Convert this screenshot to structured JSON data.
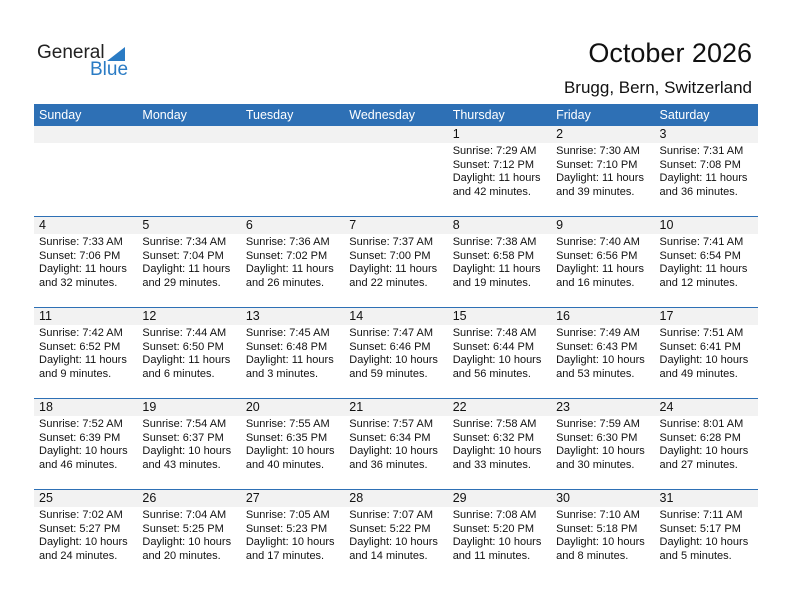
{
  "logo": {
    "general": "General",
    "blue": "Blue"
  },
  "title": "October 2026",
  "location": "Brugg, Bern, Switzerland",
  "colors": {
    "header_bg": "#2e70b5",
    "brand_blue": "#2a7bc4",
    "day_band": "#f2f2f2"
  },
  "weekdays": [
    "Sunday",
    "Monday",
    "Tuesday",
    "Wednesday",
    "Thursday",
    "Friday",
    "Saturday"
  ],
  "weeks": [
    [
      null,
      null,
      null,
      null,
      {
        "day": "1",
        "sunrise": "Sunrise: 7:29 AM",
        "sunset": "Sunset: 7:12 PM",
        "daylight1": "Daylight: 11 hours",
        "daylight2": "and 42 minutes."
      },
      {
        "day": "2",
        "sunrise": "Sunrise: 7:30 AM",
        "sunset": "Sunset: 7:10 PM",
        "daylight1": "Daylight: 11 hours",
        "daylight2": "and 39 minutes."
      },
      {
        "day": "3",
        "sunrise": "Sunrise: 7:31 AM",
        "sunset": "Sunset: 7:08 PM",
        "daylight1": "Daylight: 11 hours",
        "daylight2": "and 36 minutes."
      }
    ],
    [
      {
        "day": "4",
        "sunrise": "Sunrise: 7:33 AM",
        "sunset": "Sunset: 7:06 PM",
        "daylight1": "Daylight: 11 hours",
        "daylight2": "and 32 minutes."
      },
      {
        "day": "5",
        "sunrise": "Sunrise: 7:34 AM",
        "sunset": "Sunset: 7:04 PM",
        "daylight1": "Daylight: 11 hours",
        "daylight2": "and 29 minutes."
      },
      {
        "day": "6",
        "sunrise": "Sunrise: 7:36 AM",
        "sunset": "Sunset: 7:02 PM",
        "daylight1": "Daylight: 11 hours",
        "daylight2": "and 26 minutes."
      },
      {
        "day": "7",
        "sunrise": "Sunrise: 7:37 AM",
        "sunset": "Sunset: 7:00 PM",
        "daylight1": "Daylight: 11 hours",
        "daylight2": "and 22 minutes."
      },
      {
        "day": "8",
        "sunrise": "Sunrise: 7:38 AM",
        "sunset": "Sunset: 6:58 PM",
        "daylight1": "Daylight: 11 hours",
        "daylight2": "and 19 minutes."
      },
      {
        "day": "9",
        "sunrise": "Sunrise: 7:40 AM",
        "sunset": "Sunset: 6:56 PM",
        "daylight1": "Daylight: 11 hours",
        "daylight2": "and 16 minutes."
      },
      {
        "day": "10",
        "sunrise": "Sunrise: 7:41 AM",
        "sunset": "Sunset: 6:54 PM",
        "daylight1": "Daylight: 11 hours",
        "daylight2": "and 12 minutes."
      }
    ],
    [
      {
        "day": "11",
        "sunrise": "Sunrise: 7:42 AM",
        "sunset": "Sunset: 6:52 PM",
        "daylight1": "Daylight: 11 hours",
        "daylight2": "and 9 minutes."
      },
      {
        "day": "12",
        "sunrise": "Sunrise: 7:44 AM",
        "sunset": "Sunset: 6:50 PM",
        "daylight1": "Daylight: 11 hours",
        "daylight2": "and 6 minutes."
      },
      {
        "day": "13",
        "sunrise": "Sunrise: 7:45 AM",
        "sunset": "Sunset: 6:48 PM",
        "daylight1": "Daylight: 11 hours",
        "daylight2": "and 3 minutes."
      },
      {
        "day": "14",
        "sunrise": "Sunrise: 7:47 AM",
        "sunset": "Sunset: 6:46 PM",
        "daylight1": "Daylight: 10 hours",
        "daylight2": "and 59 minutes."
      },
      {
        "day": "15",
        "sunrise": "Sunrise: 7:48 AM",
        "sunset": "Sunset: 6:44 PM",
        "daylight1": "Daylight: 10 hours",
        "daylight2": "and 56 minutes."
      },
      {
        "day": "16",
        "sunrise": "Sunrise: 7:49 AM",
        "sunset": "Sunset: 6:43 PM",
        "daylight1": "Daylight: 10 hours",
        "daylight2": "and 53 minutes."
      },
      {
        "day": "17",
        "sunrise": "Sunrise: 7:51 AM",
        "sunset": "Sunset: 6:41 PM",
        "daylight1": "Daylight: 10 hours",
        "daylight2": "and 49 minutes."
      }
    ],
    [
      {
        "day": "18",
        "sunrise": "Sunrise: 7:52 AM",
        "sunset": "Sunset: 6:39 PM",
        "daylight1": "Daylight: 10 hours",
        "daylight2": "and 46 minutes."
      },
      {
        "day": "19",
        "sunrise": "Sunrise: 7:54 AM",
        "sunset": "Sunset: 6:37 PM",
        "daylight1": "Daylight: 10 hours",
        "daylight2": "and 43 minutes."
      },
      {
        "day": "20",
        "sunrise": "Sunrise: 7:55 AM",
        "sunset": "Sunset: 6:35 PM",
        "daylight1": "Daylight: 10 hours",
        "daylight2": "and 40 minutes."
      },
      {
        "day": "21",
        "sunrise": "Sunrise: 7:57 AM",
        "sunset": "Sunset: 6:34 PM",
        "daylight1": "Daylight: 10 hours",
        "daylight2": "and 36 minutes."
      },
      {
        "day": "22",
        "sunrise": "Sunrise: 7:58 AM",
        "sunset": "Sunset: 6:32 PM",
        "daylight1": "Daylight: 10 hours",
        "daylight2": "and 33 minutes."
      },
      {
        "day": "23",
        "sunrise": "Sunrise: 7:59 AM",
        "sunset": "Sunset: 6:30 PM",
        "daylight1": "Daylight: 10 hours",
        "daylight2": "and 30 minutes."
      },
      {
        "day": "24",
        "sunrise": "Sunrise: 8:01 AM",
        "sunset": "Sunset: 6:28 PM",
        "daylight1": "Daylight: 10 hours",
        "daylight2": "and 27 minutes."
      }
    ],
    [
      {
        "day": "25",
        "sunrise": "Sunrise: 7:02 AM",
        "sunset": "Sunset: 5:27 PM",
        "daylight1": "Daylight: 10 hours",
        "daylight2": "and 24 minutes."
      },
      {
        "day": "26",
        "sunrise": "Sunrise: 7:04 AM",
        "sunset": "Sunset: 5:25 PM",
        "daylight1": "Daylight: 10 hours",
        "daylight2": "and 20 minutes."
      },
      {
        "day": "27",
        "sunrise": "Sunrise: 7:05 AM",
        "sunset": "Sunset: 5:23 PM",
        "daylight1": "Daylight: 10 hours",
        "daylight2": "and 17 minutes."
      },
      {
        "day": "28",
        "sunrise": "Sunrise: 7:07 AM",
        "sunset": "Sunset: 5:22 PM",
        "daylight1": "Daylight: 10 hours",
        "daylight2": "and 14 minutes."
      },
      {
        "day": "29",
        "sunrise": "Sunrise: 7:08 AM",
        "sunset": "Sunset: 5:20 PM",
        "daylight1": "Daylight: 10 hours",
        "daylight2": "and 11 minutes."
      },
      {
        "day": "30",
        "sunrise": "Sunrise: 7:10 AM",
        "sunset": "Sunset: 5:18 PM",
        "daylight1": "Daylight: 10 hours",
        "daylight2": "and 8 minutes."
      },
      {
        "day": "31",
        "sunrise": "Sunrise: 7:11 AM",
        "sunset": "Sunset: 5:17 PM",
        "daylight1": "Daylight: 10 hours",
        "daylight2": "and 5 minutes."
      }
    ]
  ]
}
